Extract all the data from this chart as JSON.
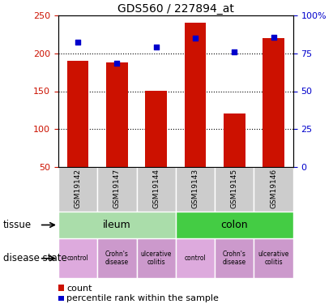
{
  "title": "GDS560 / 227894_at",
  "samples": [
    "GSM19142",
    "GSM19147",
    "GSM19144",
    "GSM19143",
    "GSM19145",
    "GSM19146"
  ],
  "counts": [
    190,
    188,
    151,
    240,
    121,
    220
  ],
  "percentile_left_vals": [
    215,
    187,
    208,
    220,
    202,
    221
  ],
  "ylim_left": [
    50,
    250
  ],
  "ylim_right": [
    0,
    100
  ],
  "yticks_left": [
    50,
    100,
    150,
    200,
    250
  ],
  "yticks_right": [
    0,
    25,
    50,
    75,
    100
  ],
  "yticklabels_right": [
    "0",
    "25",
    "50",
    "75",
    "100%"
  ],
  "bar_color": "#cc1100",
  "dot_color": "#0000cc",
  "tissue_ileum_color": "#aaddaa",
  "tissue_colon_color": "#44cc44",
  "disease_colors": [
    "#ddaadd",
    "#cc99cc",
    "#cc99cc",
    "#ddaadd",
    "#cc99cc",
    "#cc99cc"
  ],
  "tissue_labels": [
    "ileum",
    "colon"
  ],
  "disease_labels": [
    "control",
    "Crohn's\ndisease",
    "ulcerative\ncolitis",
    "control",
    "Crohn's\ndisease",
    "ulcerative\ncolitis"
  ],
  "legend_count_label": "count",
  "legend_pct_label": "percentile rank within the sample",
  "tissue_row_label": "tissue",
  "disease_row_label": "disease state",
  "left_axis_color": "#cc1100",
  "right_axis_color": "#0000cc",
  "sample_bg_color": "#cccccc"
}
